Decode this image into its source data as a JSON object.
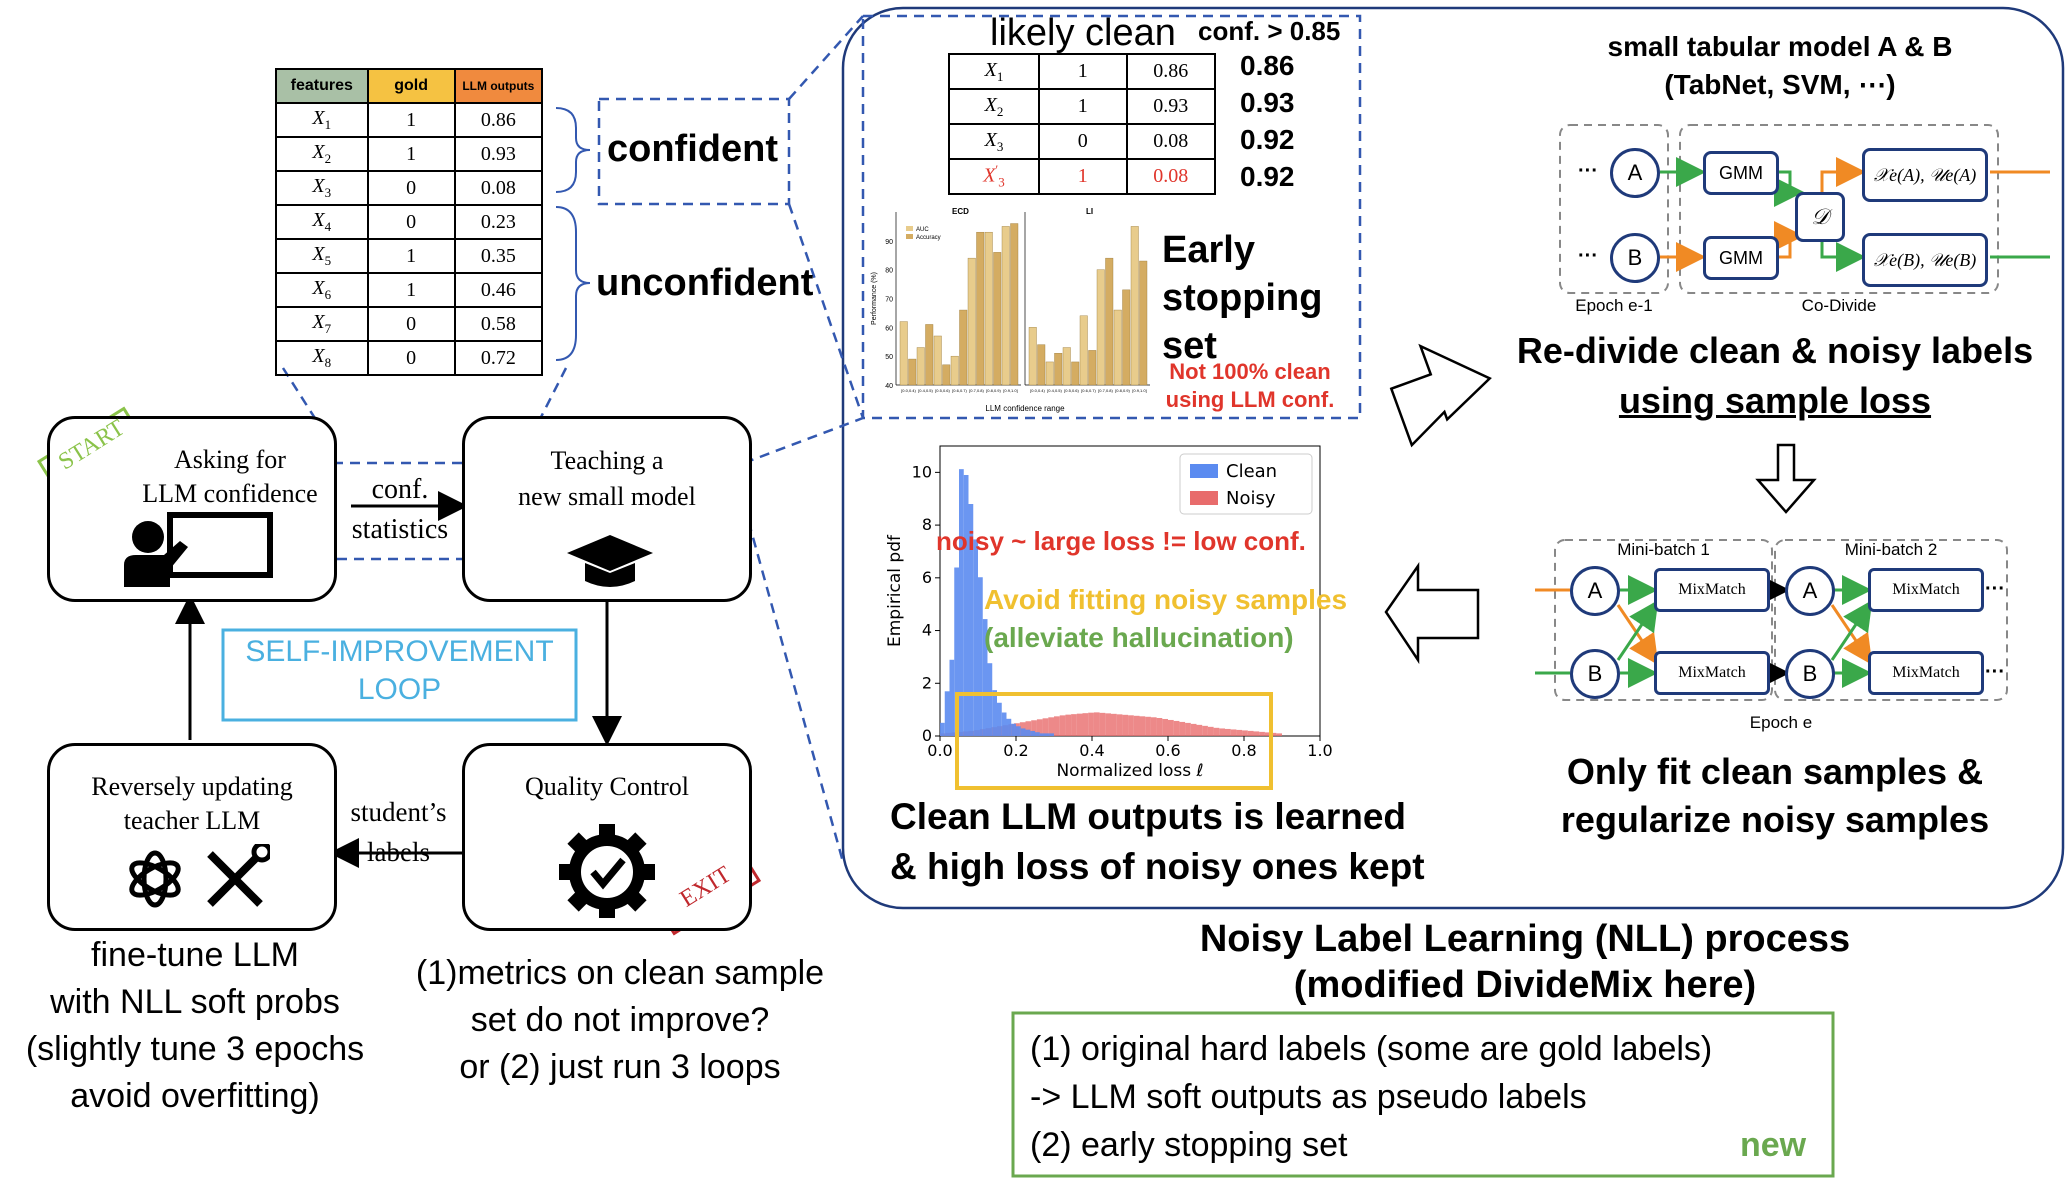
{
  "feature_table": {
    "headers": [
      "features",
      "gold",
      "LLM outputs"
    ],
    "header_colors": [
      "#a9c0a6",
      "#f5c242",
      "#f08a3e"
    ],
    "rows": [
      {
        "feature": "X1",
        "gold": "1",
        "llm": "0.86"
      },
      {
        "feature": "X2",
        "gold": "1",
        "llm": "0.93"
      },
      {
        "feature": "X3",
        "gold": "0",
        "llm": "0.08"
      },
      {
        "feature": "X4",
        "gold": "0",
        "llm": "0.23"
      },
      {
        "feature": "X5",
        "gold": "1",
        "llm": "0.35"
      },
      {
        "feature": "X6",
        "gold": "1",
        "llm": "0.46"
      },
      {
        "feature": "X7",
        "gold": "0",
        "llm": "0.58"
      },
      {
        "feature": "X8",
        "gold": "0",
        "llm": "0.72"
      }
    ],
    "confident_label": "confident",
    "unconfident_label": "unconfident"
  },
  "loop": {
    "start_stamp": "START",
    "exit_stamp": "EXIT",
    "box_ask": "Asking for\nLLM confidence",
    "box_teach": "Teaching a\nnew small model",
    "box_quality": "Quality Control",
    "box_reverse": "Reversely updating\nteacher LLM",
    "arrow_conf": "conf.\nstatistics",
    "arrow_student": "student’s\nlabels",
    "self_improvement": "SELF-IMPROVEMENT\nLOOP",
    "finetune_note": "fine-tune LLM\nwith NLL soft probs\n(slightly tune 3 epochs\navoid overfitting)",
    "quality_note": "(1)metrics on clean sample\nset do not improve?\nor (2) just run 3 loops"
  },
  "likely_clean": {
    "title": "likely clean",
    "threshold": "conf. > 0.85",
    "rows": [
      {
        "feature": "X1",
        "gold": "1",
        "llm": "0.86",
        "side": "0.86",
        "noisy": false
      },
      {
        "feature": "X2",
        "gold": "1",
        "llm": "0.93",
        "side": "0.93",
        "noisy": false
      },
      {
        "feature": "X3",
        "gold": "0",
        "llm": "0.08",
        "side": "0.92",
        "noisy": false
      },
      {
        "feature": "X3'",
        "gold": "1",
        "llm": "0.08",
        "side": "0.92",
        "noisy": true
      }
    ],
    "early_stopping": "Early\nstopping\nset",
    "warning": "Not 100% clean\nusing LLM conf."
  },
  "chart_data": [
    {
      "type": "bar",
      "panels": [
        {
          "title": "ECD",
          "categories": [
            "[0.0,0.4)",
            "[0.4,0.5)",
            "[0.5,0.6)",
            "[0.6,0.7)",
            "[0.7,0.8)",
            "[0.8,0.9)",
            "[0.9,1.0]"
          ],
          "series": [
            {
              "name": "AUC",
              "values": [
                62,
                53,
                57,
                50,
                84,
                93,
                95
              ]
            },
            {
              "name": "Accuracy",
              "values": [
                49,
                61,
                47,
                66,
                93,
                86,
                96
              ]
            }
          ]
        },
        {
          "title": "LI",
          "categories": [
            "[0.0,0.4)",
            "[0.4,0.5)",
            "[0.5,0.6)",
            "[0.6,0.7)",
            "[0.7,0.8)",
            "[0.8,0.9)",
            "[0.9,1.0]"
          ],
          "series": [
            {
              "name": "AUC",
              "values": [
                60,
                48,
                53,
                64,
                80,
                66,
                95
              ]
            },
            {
              "name": "Accuracy",
              "values": [
                54,
                51,
                48,
                52,
                84,
                73,
                83
              ]
            }
          ]
        }
      ],
      "ylabel": "Performance (%)",
      "xlabel": "LLM confidence range",
      "ylim": [
        40,
        100
      ],
      "yticks": [
        "40",
        "50",
        "60",
        "70",
        "80",
        "90"
      ],
      "colors": [
        "#e8cc8c",
        "#d4ac62"
      ]
    },
    {
      "type": "bar",
      "title": "",
      "xlabel": "Normalized loss ℓ",
      "ylabel": "Empirical pdf",
      "xlim": [
        0.0,
        1.0
      ],
      "ylim": [
        0,
        11
      ],
      "xticks": [
        "0.0",
        "0.2",
        "0.4",
        "0.6",
        "0.8",
        "1.0"
      ],
      "yticks": [
        "0",
        "2",
        "4",
        "6",
        "8",
        "10"
      ],
      "legend": "top-right",
      "series": [
        {
          "name": "Clean",
          "color": "#5b8bf0",
          "values": [
            0.5,
            3.0,
            10.8,
            8.5,
            5.5,
            2.0,
            1.0,
            0.5,
            0.3,
            0.2,
            0.1,
            0.1
          ]
        },
        {
          "name": "Noisy",
          "color": "#e86c6c",
          "values": [
            0.1,
            0.2,
            0.4,
            0.6,
            0.8,
            0.9,
            0.8,
            0.7,
            0.5,
            0.3,
            0.2,
            0.1
          ]
        }
      ]
    }
  ],
  "pdf_annotations": {
    "noisy_loss": "noisy ~ large loss != low conf.",
    "avoid_fitting": "Avoid fitting noisy samples",
    "alleviate": "(alleviate hallucination)",
    "caption": "Clean LLM outputs is learned\n& high loss of noisy ones kept"
  },
  "codivide": {
    "title": "small tabular model A & B\n(TabNet, SVM, ⋯)",
    "node_a": "A",
    "node_b": "B",
    "gmm": "GMM",
    "divider": "𝒟",
    "out_a": "𝒳e(A), 𝒰e(A)",
    "out_b": "𝒳e(B), 𝒰e(B)",
    "epoch_prev": "Epoch e-1",
    "co_divide": "Co-Divide",
    "ellipsis": "···",
    "caption_line1": "Re-divide clean & noisy labels",
    "caption_line2": "using sample loss"
  },
  "mixmatch": {
    "minibatch1": "Mini-batch 1",
    "minibatch2": "Mini-batch 2",
    "mixmatch": "MixMatch",
    "epoch": "Epoch e",
    "caption": "Only fit clean samples &\nregularize noisy samples"
  },
  "nll": {
    "title_line1": "Noisy Label Learning (NLL) process",
    "title_line2": "(modified DivideMix here)",
    "item1": "(1)  original hard labels (some are gold labels)",
    "item1b": "-> LLM soft outputs as pseudo labels",
    "item2": "(2) early stopping set",
    "new_tag": "new"
  },
  "colors": {
    "green_arrow": "#3aa84a",
    "orange_arrow": "#f08a24",
    "node_blue": "#1f3a7a",
    "dashed_blue": "#3358b0",
    "loop_blue": "#4ab0e0",
    "red": "#e0352b",
    "yellow": "#f0c030",
    "green_text": "#6aa84f",
    "start_green": "#8bc34a",
    "exit_red": "#c0282d"
  }
}
